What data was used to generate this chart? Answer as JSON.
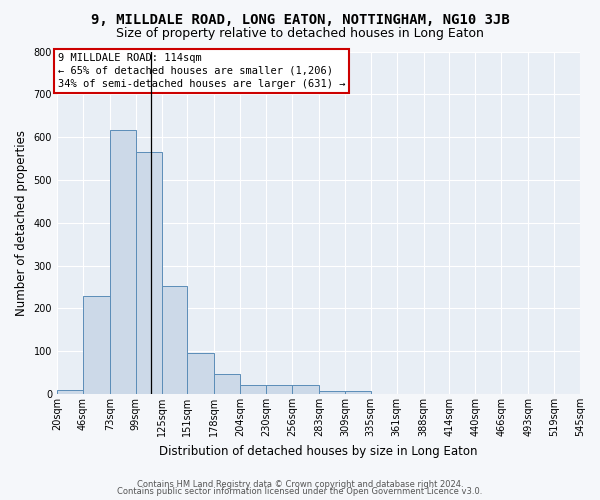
{
  "title": "9, MILLDALE ROAD, LONG EATON, NOTTINGHAM, NG10 3JB",
  "subtitle": "Size of property relative to detached houses in Long Eaton",
  "xlabel": "Distribution of detached houses by size in Long Eaton",
  "ylabel": "Number of detached properties",
  "bar_color": "#ccd9e8",
  "bar_edge_color": "#5b8db8",
  "background_color": "#e8eef5",
  "grid_color": "#ffffff",
  "fig_background": "#f5f7fa",
  "bins": [
    20,
    46,
    73,
    99,
    125,
    151,
    178,
    204,
    230,
    256,
    283,
    309,
    335,
    361,
    388,
    414,
    440,
    466,
    493,
    519,
    545
  ],
  "values": [
    10,
    229,
    617,
    565,
    252,
    96,
    46,
    20,
    20,
    20,
    8,
    8,
    0,
    0,
    0,
    0,
    0,
    0,
    0,
    0
  ],
  "property_size": 114,
  "annotation_text": "9 MILLDALE ROAD: 114sqm\n← 65% of detached houses are smaller (1,206)\n34% of semi-detached houses are larger (631) →",
  "annotation_box_color": "#ffffff",
  "annotation_border_color": "#cc0000",
  "ylim": [
    0,
    800
  ],
  "yticks": [
    0,
    100,
    200,
    300,
    400,
    500,
    600,
    700,
    800
  ],
  "title_fontsize": 10,
  "subtitle_fontsize": 9,
  "xlabel_fontsize": 8.5,
  "ylabel_fontsize": 8.5,
  "tick_fontsize": 7,
  "annotation_fontsize": 7.5,
  "footer_line1": "Contains HM Land Registry data © Crown copyright and database right 2024.",
  "footer_line2": "Contains public sector information licensed under the Open Government Licence v3.0."
}
